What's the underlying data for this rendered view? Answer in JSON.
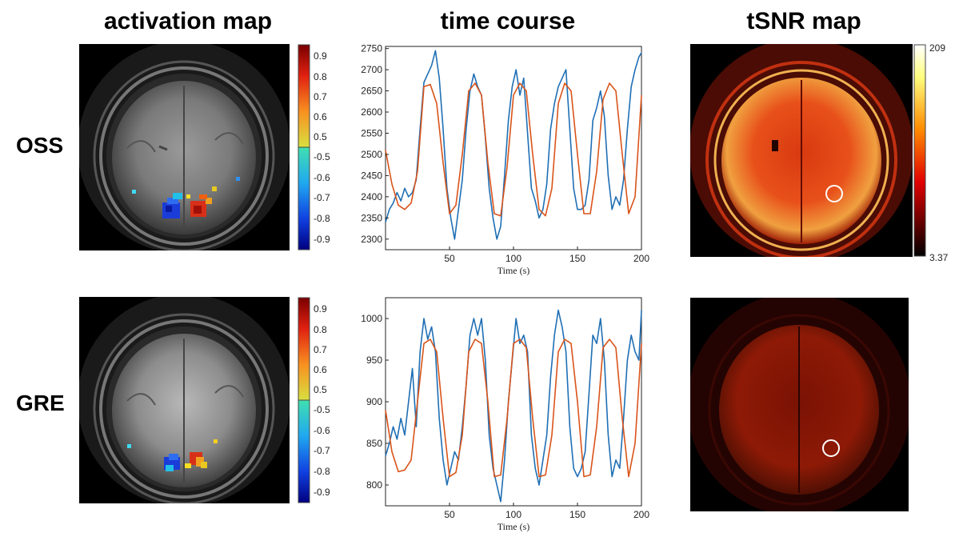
{
  "column_titles": {
    "activation": "activation map",
    "time_course": "time course",
    "tsnr": "tSNR map"
  },
  "row_labels": [
    "OSS",
    "GRE"
  ],
  "activation_colorbar": {
    "positive_ticks": [
      "0.9",
      "0.8",
      "0.7",
      "0.6",
      "0.5"
    ],
    "negative_ticks": [
      "-0.5",
      "-0.6",
      "-0.7",
      "-0.8",
      "-0.9"
    ]
  },
  "tsnr_colorbar": {
    "max_label": "209",
    "min_label": "3.37"
  },
  "colors": {
    "measured_line": "#1f6fb4",
    "model_line": "#d9541a",
    "axis": "#222222"
  },
  "chart_data": [
    {
      "type": "line",
      "title": "OSS time course",
      "xlabel": "Time (s)",
      "ylabel": "",
      "xlim": [
        0,
        200
      ],
      "ylim": [
        2275,
        2755
      ],
      "xticks": [
        50,
        100,
        150,
        200
      ],
      "yticks": [
        2300,
        2350,
        2400,
        2450,
        2500,
        2550,
        2600,
        2650,
        2700,
        2750
      ],
      "series": [
        {
          "name": "measured",
          "x": [
            0,
            3,
            6,
            9,
            12,
            15,
            18,
            21,
            24,
            27,
            30,
            33,
            36,
            39,
            42,
            45,
            48,
            51,
            54,
            57,
            60,
            63,
            66,
            69,
            72,
            75,
            78,
            81,
            84,
            87,
            90,
            93,
            96,
            99,
            102,
            105,
            108,
            111,
            114,
            117,
            120,
            123,
            126,
            129,
            132,
            135,
            138,
            141,
            144,
            147,
            150,
            153,
            156,
            159,
            162,
            165,
            168,
            171,
            174,
            177,
            180,
            183,
            186,
            189,
            192,
            195,
            198,
            200
          ],
          "values": [
            2340,
            2370,
            2385,
            2410,
            2390,
            2420,
            2400,
            2410,
            2440,
            2560,
            2670,
            2690,
            2710,
            2745,
            2680,
            2560,
            2420,
            2350,
            2300,
            2370,
            2440,
            2560,
            2650,
            2690,
            2660,
            2640,
            2540,
            2420,
            2350,
            2300,
            2330,
            2450,
            2580,
            2660,
            2700,
            2640,
            2680,
            2550,
            2420,
            2390,
            2350,
            2370,
            2430,
            2560,
            2620,
            2660,
            2680,
            2700,
            2560,
            2420,
            2370,
            2370,
            2380,
            2440,
            2580,
            2610,
            2650,
            2590,
            2450,
            2370,
            2400,
            2380,
            2440,
            2560,
            2660,
            2700,
            2730,
            2740
          ]
        },
        {
          "name": "model",
          "x": [
            0,
            5,
            10,
            15,
            20,
            25,
            30,
            35,
            40,
            45,
            50,
            55,
            60,
            65,
            70,
            75,
            80,
            85,
            90,
            95,
            100,
            105,
            110,
            115,
            120,
            125,
            130,
            135,
            140,
            145,
            150,
            155,
            160,
            165,
            170,
            175,
            180,
            185,
            190,
            195,
            200
          ],
          "values": [
            2510,
            2430,
            2380,
            2370,
            2385,
            2460,
            2660,
            2665,
            2620,
            2480,
            2360,
            2380,
            2500,
            2650,
            2668,
            2640,
            2480,
            2360,
            2355,
            2470,
            2640,
            2668,
            2650,
            2500,
            2370,
            2355,
            2420,
            2620,
            2668,
            2650,
            2500,
            2360,
            2360,
            2460,
            2630,
            2668,
            2650,
            2500,
            2360,
            2400,
            2640
          ]
        }
      ]
    },
    {
      "type": "line",
      "title": "GRE time course",
      "xlabel": "Time (s)",
      "ylabel": "",
      "xlim": [
        0,
        200
      ],
      "ylim": [
        775,
        1025
      ],
      "xticks": [
        50,
        100,
        150,
        200
      ],
      "yticks": [
        800,
        850,
        900,
        950,
        1000
      ],
      "series": [
        {
          "name": "measured",
          "x": [
            0,
            3,
            6,
            9,
            12,
            15,
            18,
            21,
            24,
            27,
            30,
            33,
            36,
            39,
            42,
            45,
            48,
            51,
            54,
            57,
            60,
            63,
            66,
            69,
            72,
            75,
            78,
            81,
            84,
            87,
            90,
            93,
            96,
            99,
            102,
            105,
            108,
            111,
            114,
            117,
            120,
            123,
            126,
            129,
            132,
            135,
            138,
            141,
            144,
            147,
            150,
            153,
            156,
            159,
            162,
            165,
            168,
            171,
            174,
            177,
            180,
            183,
            186,
            189,
            192,
            195,
            198,
            200
          ],
          "values": [
            835,
            850,
            870,
            855,
            880,
            860,
            900,
            940,
            870,
            960,
            1000,
            975,
            990,
            960,
            880,
            830,
            800,
            820,
            840,
            830,
            870,
            920,
            980,
            1000,
            980,
            1000,
            950,
            860,
            820,
            800,
            780,
            830,
            900,
            950,
            1000,
            970,
            980,
            960,
            860,
            820,
            800,
            830,
            860,
            930,
            980,
            1010,
            990,
            960,
            870,
            820,
            810,
            820,
            840,
            910,
            980,
            970,
            1000,
            950,
            860,
            810,
            830,
            820,
            880,
            950,
            980,
            960,
            950,
            1010
          ]
        },
        {
          "name": "model",
          "x": [
            0,
            5,
            10,
            15,
            20,
            25,
            30,
            35,
            40,
            45,
            50,
            55,
            60,
            65,
            70,
            75,
            80,
            85,
            90,
            95,
            100,
            105,
            110,
            115,
            120,
            125,
            130,
            135,
            140,
            145,
            150,
            155,
            160,
            165,
            170,
            175,
            180,
            185,
            190,
            195,
            200
          ],
          "values": [
            890,
            840,
            816,
            818,
            830,
            900,
            970,
            975,
            960,
            880,
            810,
            815,
            860,
            960,
            975,
            970,
            900,
            810,
            812,
            880,
            970,
            975,
            965,
            880,
            810,
            812,
            860,
            960,
            975,
            970,
            900,
            810,
            812,
            870,
            965,
            975,
            965,
            880,
            810,
            850,
            970
          ]
        }
      ]
    }
  ]
}
